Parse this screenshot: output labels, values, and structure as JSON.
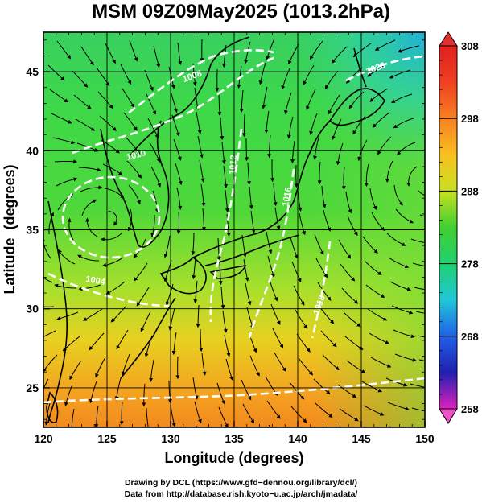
{
  "title": "MSM 09Z09May2025 (1013.2hPa)",
  "chart_data": {
    "type": "map",
    "xlabel": "Longitude (degrees)",
    "ylabel": "Latitude  (degrees)",
    "xlim": [
      120,
      150
    ],
    "ylim": [
      22.5,
      47.5
    ],
    "x_ticks": [
      "120",
      "125",
      "130",
      "135",
      "140",
      "145",
      "150"
    ],
    "y_ticks": [
      "25",
      "30",
      "35",
      "40",
      "45"
    ],
    "colorbar": {
      "min": 258,
      "max": 308,
      "ticks": [
        "258",
        "268",
        "278",
        "288",
        "298",
        "308"
      ]
    },
    "contour_labels": [
      "1008",
      "1010",
      "1012",
      "1016",
      "1018",
      "1020",
      "1004"
    ]
  },
  "footer": {
    "line1": "Drawing by DCL (https://www.gfd−dennou.org/library/dcl/)",
    "line2": "Data from http://database.rish.kyoto−u.ac.jp/arch/jmadata/"
  }
}
